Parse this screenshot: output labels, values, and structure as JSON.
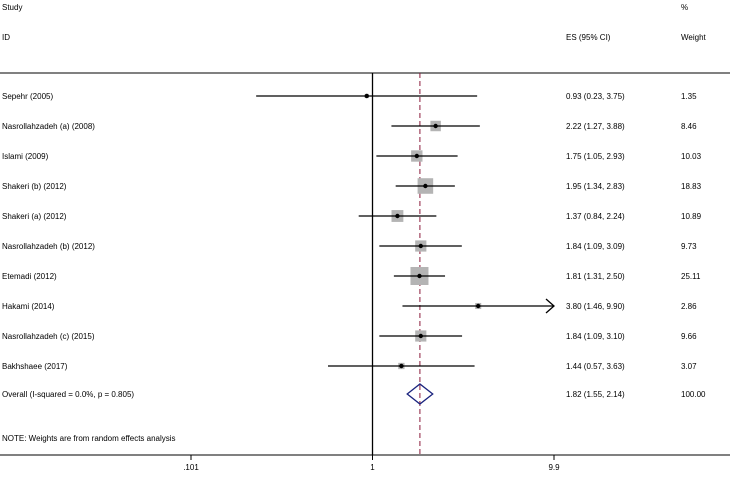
{
  "chart_data": {
    "type": "forest",
    "header": {
      "study_col": "Study",
      "id_col": "ID",
      "es_col": "ES (95% CI)",
      "weight_col_top": "%",
      "weight_col_bottom": "Weight"
    },
    "x_scale": "log",
    "xlim": [
      0.101,
      9.9
    ],
    "null_line": 1,
    "pooled_line": 1.82,
    "ticks": [
      {
        "value": 0.101,
        "label": ".101"
      },
      {
        "value": 1,
        "label": "1"
      },
      {
        "value": 9.9,
        "label": "9.9"
      }
    ],
    "studies": [
      {
        "name": "Sepehr (2005)",
        "es": 0.93,
        "lo": 0.23,
        "hi": 3.75,
        "es_text": "0.93 (0.23, 3.75)",
        "weight": 1.35,
        "weight_text": "1.35"
      },
      {
        "name": "Nasrollahzadeh (a) (2008)",
        "es": 2.22,
        "lo": 1.27,
        "hi": 3.88,
        "es_text": "2.22 (1.27, 3.88)",
        "weight": 8.46,
        "weight_text": "8.46"
      },
      {
        "name": "Islami (2009)",
        "es": 1.75,
        "lo": 1.05,
        "hi": 2.93,
        "es_text": "1.75 (1.05, 2.93)",
        "weight": 10.03,
        "weight_text": "10.03"
      },
      {
        "name": "Shakeri (b) (2012)",
        "es": 1.95,
        "lo": 1.34,
        "hi": 2.83,
        "es_text": "1.95 (1.34, 2.83)",
        "weight": 18.83,
        "weight_text": "18.83"
      },
      {
        "name": "Shakeri (a) (2012)",
        "es": 1.37,
        "lo": 0.84,
        "hi": 2.24,
        "es_text": "1.37 (0.84, 2.24)",
        "weight": 10.89,
        "weight_text": "10.89"
      },
      {
        "name": "Nasrollahzadeh (b) (2012)",
        "es": 1.84,
        "lo": 1.09,
        "hi": 3.09,
        "es_text": "1.84 (1.09, 3.09)",
        "weight": 9.73,
        "weight_text": "9.73"
      },
      {
        "name": "Etemadi (2012)",
        "es": 1.81,
        "lo": 1.31,
        "hi": 2.5,
        "es_text": "1.81 (1.31, 2.50)",
        "weight": 25.11,
        "weight_text": "25.11"
      },
      {
        "name": "Hakami (2014)",
        "es": 3.8,
        "lo": 1.46,
        "hi": 9.9,
        "es_text": "3.80 (1.46, 9.90)",
        "weight": 2.86,
        "weight_text": "2.86",
        "arrow_right": true
      },
      {
        "name": "Nasrollahzadeh (c) (2015)",
        "es": 1.84,
        "lo": 1.09,
        "hi": 3.1,
        "es_text": "1.84 (1.09, 3.10)",
        "weight": 9.66,
        "weight_text": "9.66"
      },
      {
        "name": "Bakhshaee (2017)",
        "es": 1.44,
        "lo": 0.57,
        "hi": 3.63,
        "es_text": "1.44 (0.57, 3.63)",
        "weight": 3.07,
        "weight_text": "3.07"
      }
    ],
    "overall": {
      "label": "Overall  (I-squared = 0.0%, p = 0.805)",
      "es": 1.82,
      "lo": 1.55,
      "hi": 2.14,
      "es_text": "1.82 (1.55, 2.14)",
      "weight_text": "100.00"
    },
    "note": "NOTE: Weights are from random effects analysis",
    "colors": {
      "box": "#b4b4b4",
      "diamond": "#1a237e",
      "pooled_line": "#8b1a3a",
      "line": "#000000"
    }
  }
}
